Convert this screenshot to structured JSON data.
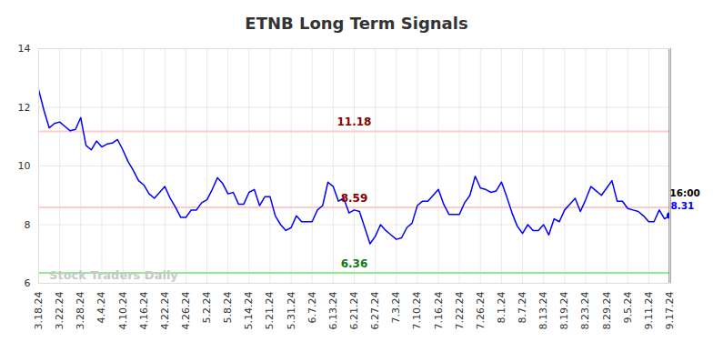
{
  "chart_data": {
    "type": "line",
    "title": "ETNB Long Term Signals",
    "color": "#0000ff",
    "grid": true,
    "ylim": [
      6,
      14
    ],
    "yticks": [
      6,
      8,
      10,
      12,
      14
    ],
    "categories": [
      "3.18.24",
      null,
      null,
      null,
      "3.22.24",
      null,
      null,
      null,
      "3.28.24",
      null,
      null,
      null,
      "4.4.24",
      null,
      null,
      null,
      "4.10.24",
      null,
      null,
      null,
      "4.16.24",
      null,
      null,
      null,
      "4.22.24",
      null,
      null,
      null,
      "4.26.24",
      null,
      null,
      null,
      "5.2.24",
      null,
      null,
      null,
      "5.8.24",
      null,
      null,
      null,
      "5.14.24",
      null,
      null,
      null,
      "5.21.24",
      null,
      null,
      null,
      "5.31.24",
      null,
      null,
      null,
      "6.7.24",
      null,
      null,
      null,
      "6.13.24",
      null,
      null,
      null,
      "6.21.24",
      null,
      null,
      null,
      "6.27.24",
      null,
      null,
      null,
      "7.3.24",
      null,
      null,
      null,
      "7.10.24",
      null,
      null,
      null,
      "7.16.24",
      null,
      null,
      null,
      "7.22.24",
      null,
      null,
      null,
      "7.26.24",
      null,
      null,
      null,
      "8.1.24",
      null,
      null,
      null,
      "8.7.24",
      null,
      null,
      null,
      "8.13.24",
      null,
      null,
      null,
      "8.19.24",
      null,
      null,
      null,
      "8.23.24",
      null,
      null,
      null,
      "8.29.24",
      null,
      null,
      null,
      "9.5.24",
      null,
      null,
      null,
      "9.11.24",
      null,
      null,
      null,
      "9.17.24"
    ],
    "values": [
      12.6,
      11.9,
      11.3,
      11.45,
      11.5,
      11.35,
      11.2,
      11.25,
      11.65,
      10.7,
      10.55,
      10.85,
      10.65,
      10.75,
      10.78,
      10.9,
      10.55,
      10.15,
      9.85,
      9.5,
      9.35,
      9.05,
      8.9,
      9.1,
      9.3,
      8.9,
      8.6,
      8.25,
      8.25,
      8.5,
      8.5,
      8.75,
      8.85,
      9.2,
      9.6,
      9.4,
      9.05,
      9.1,
      8.7,
      8.7,
      9.1,
      9.2,
      8.65,
      8.95,
      8.95,
      8.3,
      8.0,
      7.8,
      7.9,
      8.3,
      8.1,
      8.1,
      8.1,
      8.5,
      8.65,
      9.45,
      9.3,
      8.8,
      8.9,
      8.4,
      8.5,
      8.45,
      7.9,
      7.35,
      7.6,
      8.0,
      7.8,
      7.65,
      7.5,
      7.55,
      7.9,
      8.05,
      8.65,
      8.8,
      8.8,
      9.0,
      9.2,
      8.7,
      8.35,
      8.35,
      8.35,
      8.75,
      9.0,
      9.65,
      9.25,
      9.2,
      9.1,
      9.15,
      9.45,
      8.95,
      8.4,
      7.95,
      7.7,
      8.0,
      7.8,
      7.8,
      8.0,
      7.65,
      8.2,
      8.1,
      8.5,
      8.7,
      8.9,
      8.45,
      8.85,
      9.3,
      9.15,
      9.0,
      9.25,
      9.5,
      8.8,
      8.8,
      8.55,
      8.5,
      8.45,
      8.3,
      8.1,
      8.1,
      8.5,
      8.2,
      8.31
    ],
    "reference_lines": [
      {
        "value": 11.18,
        "color": "#ffcccc"
      },
      {
        "value": 8.59,
        "color": "#ffcccc"
      },
      {
        "value": 6.36,
        "color": "#90ee90"
      }
    ],
    "watermark": "Stock Traders Daily",
    "last_time": "16:00"
  }
}
